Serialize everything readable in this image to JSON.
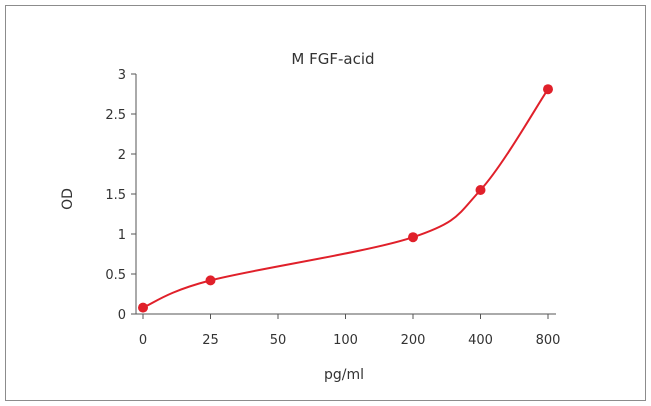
{
  "chart_data": {
    "type": "line",
    "title": "M  FGF-acid",
    "xlabel": "pg/ml",
    "ylabel": "OD",
    "x_scale": "categorical",
    "categories": [
      "0",
      "25",
      "50",
      "100",
      "200",
      "400",
      "800"
    ],
    "ylim": [
      0,
      3
    ],
    "y_ticks": [
      "0",
      "0.5",
      "1",
      "1.5",
      "2",
      "2.5",
      "3"
    ],
    "grid": false,
    "legend": "none",
    "series": [
      {
        "points": [
          {
            "x": "0",
            "y": 0.08
          },
          {
            "x": "25",
            "y": 0.42
          },
          {
            "x": "200",
            "y": 0.96
          },
          {
            "x": "400",
            "y": 1.55
          },
          {
            "x": "800",
            "y": 2.81
          }
        ],
        "color": "#e0202a",
        "smooth": true
      }
    ],
    "axis_color": "#555555",
    "text_color": "#333333"
  }
}
